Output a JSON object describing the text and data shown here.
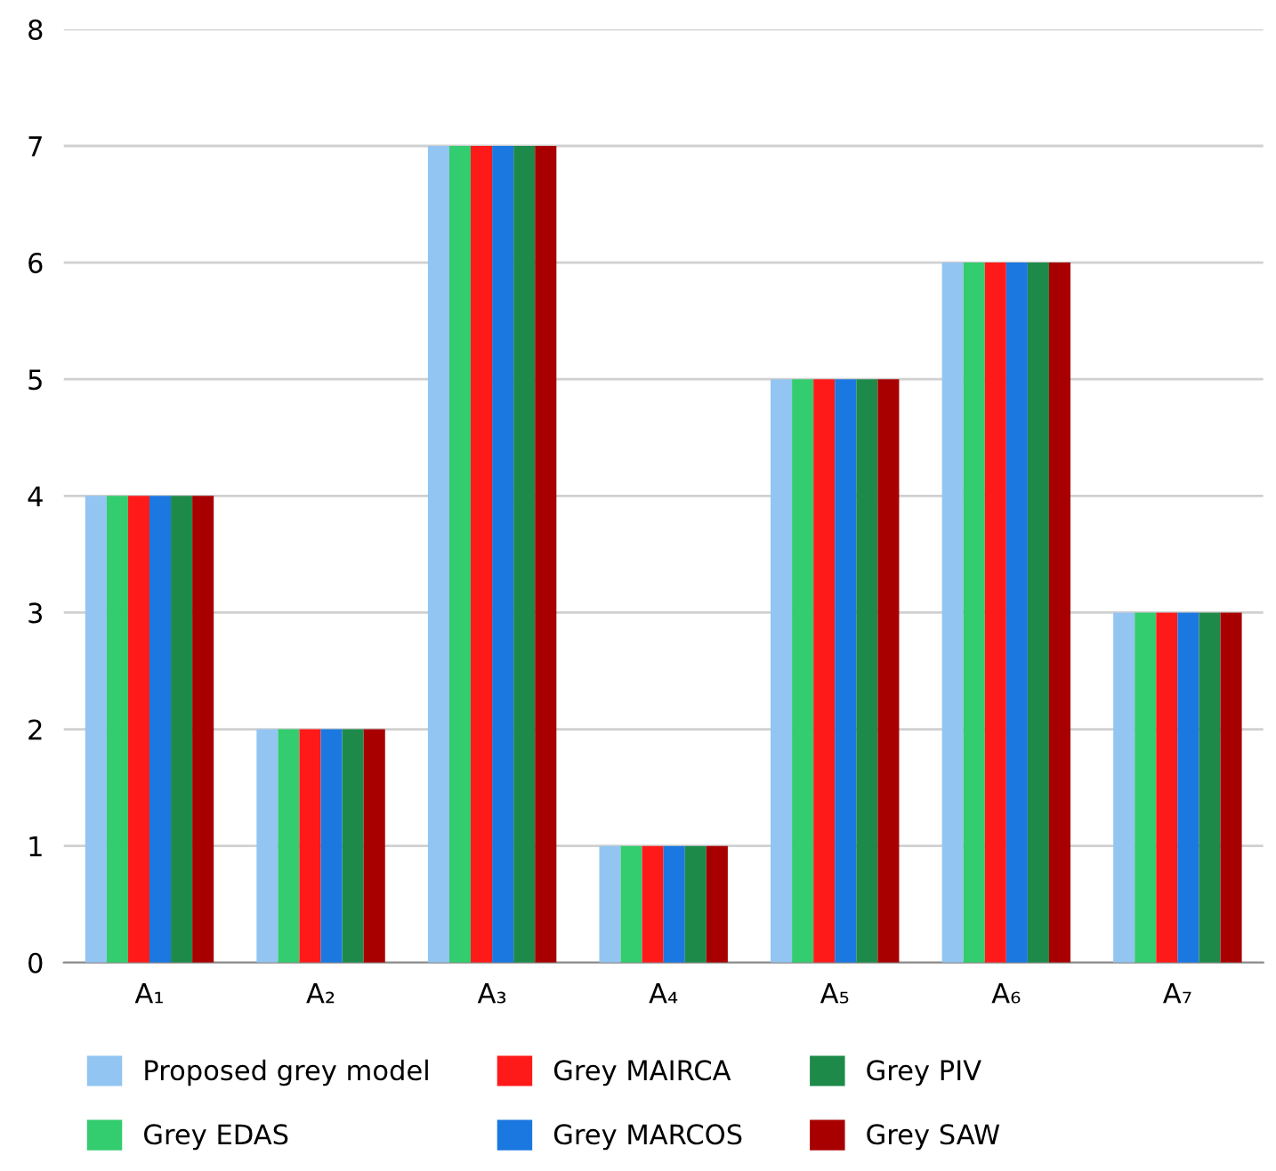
{
  "chart_data": {
    "type": "bar",
    "categories": [
      "A₁",
      "A₂",
      "A₃",
      "A₄",
      "A₅",
      "A₆",
      "A₇"
    ],
    "series": [
      {
        "name": "Proposed grey model",
        "color": "#92c5f2",
        "values": [
          4,
          2,
          7,
          1,
          5,
          6,
          3
        ]
      },
      {
        "name": "Grey EDAS",
        "color": "#33cc6e",
        "values": [
          4,
          2,
          7,
          1,
          5,
          6,
          3
        ]
      },
      {
        "name": "Grey MAIRCA",
        "color": "#ff1a1a",
        "values": [
          4,
          2,
          7,
          1,
          5,
          6,
          3
        ]
      },
      {
        "name": "Grey MARCOS",
        "color": "#1a78e0",
        "values": [
          4,
          2,
          7,
          1,
          5,
          6,
          3
        ]
      },
      {
        "name": "Grey PIV",
        "color": "#1e8a4a",
        "values": [
          4,
          2,
          7,
          1,
          5,
          6,
          3
        ]
      },
      {
        "name": "Grey SAW",
        "color": "#a80000",
        "values": [
          4,
          2,
          7,
          1,
          5,
          6,
          3
        ]
      }
    ],
    "ylim": [
      0,
      8
    ],
    "yticks": [
      0,
      1,
      2,
      3,
      4,
      5,
      6,
      7,
      8
    ],
    "grid": "y",
    "legend": "bottom"
  }
}
